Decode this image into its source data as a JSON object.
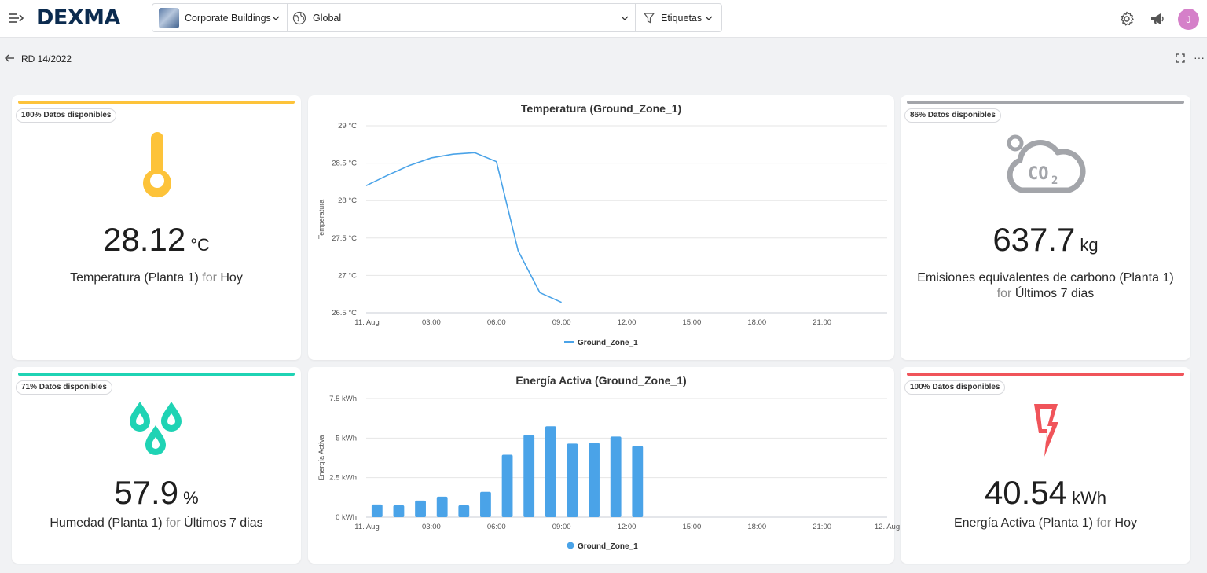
{
  "app": {
    "logo": "DEXMA"
  },
  "filters": {
    "building": "Corporate Buildings",
    "region": "Global",
    "tags": "Etiquetas"
  },
  "user": {
    "initial": "J"
  },
  "breadcrumb": {
    "title": "RD 14/2022"
  },
  "kpis": {
    "temp": {
      "badge": "100% Datos disponibles",
      "value": "28.12",
      "unit": "°C",
      "label": "Temperatura (Planta 1)",
      "for_word": "for",
      "period": "Hoy",
      "accent": "#fdc33a",
      "icon": "thermometer-icon"
    },
    "co2": {
      "badge": "86% Datos disponibles",
      "value": "637.7",
      "unit": "kg",
      "label": "Emisiones equivalentes de carbono (Planta 1)",
      "for_word": "for",
      "period": "Últimos 7 dias",
      "accent": "#a3a5aa",
      "icon": "co2-cloud-icon"
    },
    "humidity": {
      "badge": "71% Datos disponibles",
      "value": "57.9",
      "unit": "%",
      "label": "Humedad (Planta 1)",
      "for_word": "for",
      "period": "Últimos 7 dias",
      "accent": "#1fd3b4",
      "icon": "water-drops-icon"
    },
    "energy": {
      "badge": "100% Datos disponibles",
      "value": "40.54",
      "unit": "kWh",
      "label": "Energía Activa (Planta 1)",
      "for_word": "for",
      "period": "Hoy",
      "accent": "#f0545a",
      "icon": "lightning-icon"
    }
  },
  "chart_data": [
    {
      "type": "line",
      "title": "Temperatura (Ground_Zone_1)",
      "ylabel": "Temperatura",
      "ylim": [
        26.5,
        29
      ],
      "yticks": [
        "26.5 °C",
        "27 °C",
        "27.5 °C",
        "28 °C",
        "28.5 °C",
        "29 °C"
      ],
      "ytick_values": [
        26.5,
        27,
        27.5,
        28,
        28.5,
        29
      ],
      "xlim": [
        0,
        24
      ],
      "xticks": [
        "11. Aug",
        "03:00",
        "06:00",
        "09:00",
        "12:00",
        "15:00",
        "18:00",
        "21:00"
      ],
      "xtick_values": [
        0,
        3,
        6,
        9,
        12,
        15,
        18,
        21
      ],
      "series": [
        {
          "name": "Ground_Zone_1",
          "color": "#4aa3e8",
          "x": [
            0,
            1,
            2,
            3,
            4,
            5,
            6,
            7,
            8,
            9
          ],
          "values": [
            28.2,
            28.34,
            28.47,
            28.57,
            28.62,
            28.64,
            28.52,
            27.33,
            26.77,
            26.64
          ]
        }
      ]
    },
    {
      "type": "bar",
      "title": "Energía Activa (Ground_Zone_1)",
      "ylabel": "Energía Activa",
      "ylim": [
        0,
        7.5
      ],
      "yticks": [
        "0 kWh",
        "2.5 kWh",
        "5 kWh",
        "7.5 kWh"
      ],
      "ytick_values": [
        0,
        2.5,
        5,
        7.5
      ],
      "xlim": [
        0,
        24
      ],
      "xticks": [
        "11. Aug",
        "03:00",
        "06:00",
        "09:00",
        "12:00",
        "15:00",
        "18:00",
        "21:00",
        "12. Aug"
      ],
      "xtick_values": [
        0,
        3,
        6,
        9,
        12,
        15,
        18,
        21,
        24
      ],
      "series": [
        {
          "name": "Ground_Zone_1",
          "color": "#4aa3e8",
          "x": [
            0,
            1,
            2,
            3,
            4,
            5,
            6,
            7,
            8,
            9,
            10,
            11,
            12
          ],
          "values": [
            0.8,
            0.75,
            1.05,
            1.3,
            0.75,
            1.6,
            3.95,
            5.2,
            5.75,
            4.65,
            4.7,
            5.1,
            4.5
          ]
        }
      ]
    }
  ]
}
